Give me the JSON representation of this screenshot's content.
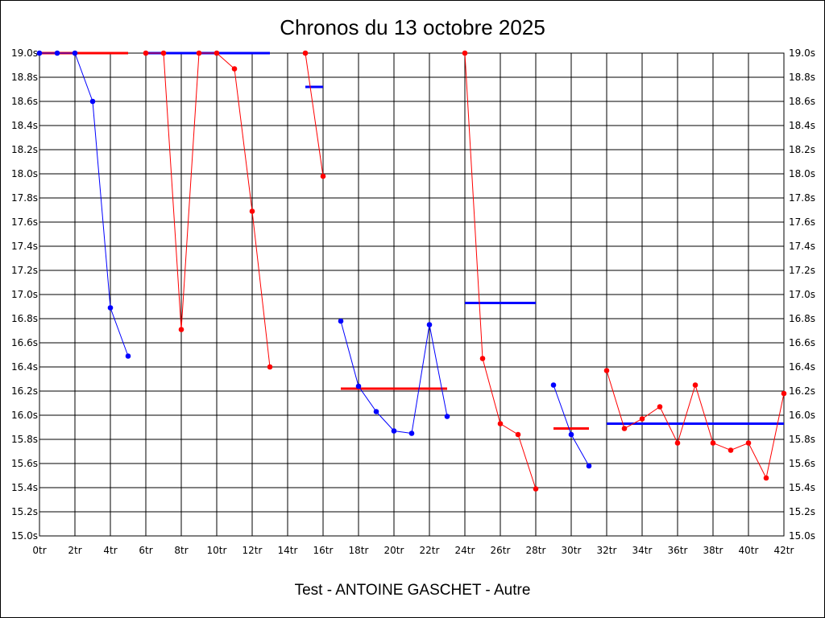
{
  "chart_data": {
    "type": "line",
    "title": "Chronos du 13 octobre 2025",
    "footer": "Test - ANTOINE GASCHET - Autre",
    "xlim": [
      0,
      42
    ],
    "ylim": [
      15.0,
      19.0
    ],
    "x_tick_labels": [
      "0tr",
      "2tr",
      "4tr",
      "6tr",
      "8tr",
      "10tr",
      "12tr",
      "14tr",
      "16tr",
      "18tr",
      "20tr",
      "22tr",
      "24tr",
      "26tr",
      "28tr",
      "30tr",
      "32tr",
      "34tr",
      "36tr",
      "38tr",
      "40tr",
      "42tr"
    ],
    "y_tick_labels": [
      "19.0s",
      "18.8s",
      "18.6s",
      "18.4s",
      "18.2s",
      "18.0s",
      "17.8s",
      "17.6s",
      "17.4s",
      "17.2s",
      "17.0s",
      "16.8s",
      "16.6s",
      "16.4s",
      "16.2s",
      "16.0s",
      "15.8s",
      "15.6s",
      "15.4s",
      "15.2s",
      "15.0s"
    ],
    "grid": true,
    "colors": {
      "blue": "#0000ff",
      "red": "#ff0000",
      "grid": "#000000",
      "background": "#ffffff"
    },
    "series": [
      {
        "color": "#0000ff",
        "points": [
          [
            0,
            19.0
          ],
          [
            1,
            19.0
          ],
          [
            2,
            19.0
          ],
          [
            3,
            18.6
          ],
          [
            4,
            16.89
          ],
          [
            5,
            16.49
          ]
        ]
      },
      {
        "color": "#ff0000",
        "points": [
          [
            6,
            19.0
          ],
          [
            7,
            19.0
          ],
          [
            8,
            16.71
          ],
          [
            9,
            19.0
          ],
          [
            10,
            19.0
          ],
          [
            11,
            18.87
          ],
          [
            12,
            17.69
          ],
          [
            13,
            16.4
          ]
        ]
      },
      {
        "color": "#ff0000",
        "points": [
          [
            15,
            19.0
          ],
          [
            16,
            17.98
          ]
        ]
      },
      {
        "color": "#0000ff",
        "points": [
          [
            17,
            16.78
          ],
          [
            18,
            16.24
          ],
          [
            19,
            16.03
          ],
          [
            20,
            15.87
          ],
          [
            21,
            15.85
          ],
          [
            22,
            16.75
          ],
          [
            23,
            15.99
          ]
        ]
      },
      {
        "color": "#ff0000",
        "points": [
          [
            24,
            19.0
          ],
          [
            25,
            16.47
          ],
          [
            26,
            15.93
          ],
          [
            27,
            15.84
          ],
          [
            28,
            15.39
          ]
        ]
      },
      {
        "color": "#0000ff",
        "points": [
          [
            29,
            16.25
          ],
          [
            30,
            15.84
          ],
          [
            31,
            15.58
          ]
        ]
      },
      {
        "color": "#ff0000",
        "points": [
          [
            32,
            16.37
          ],
          [
            33,
            15.89
          ],
          [
            34,
            15.97
          ],
          [
            35,
            16.07
          ],
          [
            36,
            15.77
          ],
          [
            37,
            16.25
          ],
          [
            38,
            15.77
          ],
          [
            39,
            15.71
          ],
          [
            40,
            15.77
          ],
          [
            41,
            15.48
          ],
          [
            42,
            16.18
          ]
        ]
      }
    ],
    "average_lines": [
      {
        "color": "#ff0000",
        "x": [
          0,
          5
        ],
        "y": 19.0
      },
      {
        "color": "#0000ff",
        "x": [
          6,
          13
        ],
        "y": 19.0
      },
      {
        "color": "#0000ff",
        "x": [
          15,
          16
        ],
        "y": 18.72
      },
      {
        "color": "#ff0000",
        "x": [
          17,
          23
        ],
        "y": 16.22
      },
      {
        "color": "#0000ff",
        "x": [
          24,
          28
        ],
        "y": 16.93
      },
      {
        "color": "#ff0000",
        "x": [
          29,
          31
        ],
        "y": 15.89
      },
      {
        "color": "#0000ff",
        "x": [
          32,
          42
        ],
        "y": 15.93
      }
    ]
  }
}
